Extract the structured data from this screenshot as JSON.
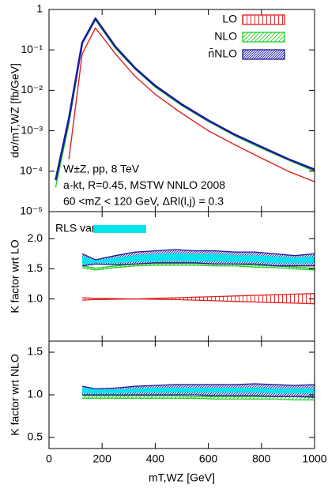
{
  "chart_data": [
    {
      "type": "line",
      "ylabel": "dσ/mT,WZ [fb/GeV]",
      "log": true,
      "xlim": [
        0,
        1000
      ],
      "ylim": [
        1e-05,
        1
      ],
      "yticks": [
        {
          "value": 1,
          "label": "1"
        },
        {
          "value": 0.1,
          "label": "10⁻¹"
        },
        {
          "value": 0.01,
          "label": "10⁻²"
        },
        {
          "value": 0.001,
          "label": "10⁻³"
        },
        {
          "value": 0.0001,
          "label": "10⁻⁴"
        },
        {
          "value": 1e-05,
          "label": "10⁻⁵"
        }
      ],
      "legend": "top-right",
      "annotations": [
        "W±Z, pp, 8 TeV",
        "a-kt, R=0.45, MSTW NNLO 2008",
        "60 <mZ < 120 GeV, ΔRl(l,j) = 0.3"
      ],
      "series": [
        {
          "name": "LO",
          "color": "#e02020",
          "hatch": "vertical",
          "x": [
            25,
            75,
            125,
            175,
            250,
            325,
            400,
            500,
            600,
            700,
            800,
            900,
            1000
          ],
          "values": [
            null,
            0.0002,
            0.08,
            0.35,
            0.08,
            0.022,
            0.008,
            0.0027,
            0.001,
            0.00045,
            0.00021,
            0.0001,
            5.5e-05
          ]
        },
        {
          "name": "NLO",
          "color": "#22d022",
          "hatch": "diagonal",
          "x": [
            25,
            75,
            125,
            175,
            250,
            325,
            400,
            500,
            600,
            700,
            800,
            900,
            1000
          ],
          "values": [
            4e-05,
            0.0015,
            0.14,
            0.55,
            0.11,
            0.033,
            0.012,
            0.0042,
            0.0017,
            0.00075,
            0.00037,
            0.00019,
            0.0001
          ]
        },
        {
          "name": "n̄NLO",
          "color": "#1c1ca0",
          "hatch": "dense",
          "x": [
            25,
            75,
            125,
            175,
            250,
            325,
            400,
            500,
            600,
            700,
            800,
            900,
            1000
          ],
          "values": [
            6e-05,
            0.002,
            0.15,
            0.6,
            0.12,
            0.035,
            0.013,
            0.0045,
            0.0018,
            0.0008,
            0.0004,
            0.0002,
            0.00011
          ]
        }
      ]
    },
    {
      "type": "band",
      "ylabel": "K factor wrt LO",
      "xlim": [
        0,
        1000
      ],
      "ylim": [
        0.3,
        2.45
      ],
      "yticks": [
        {
          "value": 1,
          "label": "1.0"
        },
        1.5,
        {
          "value": 2,
          "label": "2.0"
        }
      ],
      "legend": "top-left",
      "series": [
        {
          "color": "#e02020",
          "hatch": "vertical",
          "x": [
            125,
            175,
            250,
            325,
            400,
            475,
            550,
            625,
            700,
            775,
            850,
            925,
            1000
          ],
          "low": [
            0.98,
            0.99,
            0.995,
            1.0,
            0.995,
            0.99,
            0.98,
            0.97,
            0.96,
            0.95,
            0.94,
            0.93,
            0.92
          ],
          "high": [
            1.02,
            1.01,
            1.005,
            1.0,
            1.01,
            1.02,
            1.03,
            1.04,
            1.05,
            1.06,
            1.07,
            1.08,
            1.09
          ]
        },
        {
          "color": "#22d022",
          "hatch": "diagonal",
          "x": [
            125,
            175,
            250,
            325,
            400,
            475,
            550,
            625,
            700,
            775,
            850,
            925,
            1000
          ],
          "low": [
            1.52,
            1.48,
            1.52,
            1.55,
            1.56,
            1.56,
            1.56,
            1.55,
            1.55,
            1.53,
            1.52,
            1.5,
            1.48
          ],
          "high": [
            1.55,
            1.51,
            1.55,
            1.58,
            1.59,
            1.59,
            1.59,
            1.58,
            1.58,
            1.56,
            1.55,
            1.53,
            1.51
          ]
        },
        {
          "color": "#1c1ca0",
          "hatch": "dense",
          "x": [
            125,
            175,
            250,
            325,
            400,
            475,
            550,
            625,
            700,
            775,
            850,
            925,
            1000
          ],
          "low": [
            1.55,
            1.58,
            1.57,
            1.58,
            1.6,
            1.6,
            1.6,
            1.58,
            1.58,
            1.58,
            1.55,
            1.55,
            1.55
          ],
          "high": [
            1.75,
            1.65,
            1.72,
            1.78,
            1.8,
            1.82,
            1.8,
            1.8,
            1.78,
            1.78,
            1.75,
            1.72,
            1.75
          ]
        },
        {
          "name": "RLS var",
          "color": "#00e5ee",
          "hatch": "solid",
          "x": [
            125,
            175,
            250,
            325,
            400,
            475,
            550,
            625,
            700,
            775,
            850,
            925,
            1000
          ],
          "low": [
            1.58,
            1.6,
            1.6,
            1.62,
            1.63,
            1.64,
            1.63,
            1.63,
            1.62,
            1.62,
            1.6,
            1.6,
            1.6
          ],
          "high": [
            1.7,
            1.64,
            1.68,
            1.72,
            1.74,
            1.75,
            1.74,
            1.74,
            1.72,
            1.72,
            1.7,
            1.68,
            1.7
          ]
        }
      ]
    },
    {
      "type": "band",
      "ylabel": "K factor wrt NLO",
      "xlabel": "mT,WZ [GeV]",
      "xlim": [
        0,
        1000
      ],
      "ylim": [
        0.37,
        1.63
      ],
      "xticks": [
        0,
        200,
        400,
        600,
        800,
        1000
      ],
      "yticks": [
        0.5,
        {
          "value": 1,
          "label": "1.0"
        },
        1.5
      ],
      "series": [
        {
          "color": "#22d022",
          "hatch": "diagonal",
          "x": [
            125,
            175,
            250,
            325,
            400,
            475,
            550,
            625,
            700,
            775,
            850,
            925,
            1000
          ],
          "low": [
            0.96,
            0.96,
            0.96,
            0.96,
            0.96,
            0.96,
            0.96,
            0.95,
            0.95,
            0.95,
            0.95,
            0.94,
            0.94
          ],
          "high": [
            0.99,
            0.99,
            0.99,
            0.99,
            0.99,
            0.99,
            0.98,
            0.98,
            0.98,
            0.98,
            0.98,
            0.98,
            0.98
          ]
        },
        {
          "color": "#1c1ca0",
          "hatch": "dense",
          "x": [
            125,
            175,
            250,
            325,
            400,
            475,
            550,
            625,
            700,
            775,
            850,
            925,
            1000
          ],
          "low": [
            1.0,
            1.0,
            1.0,
            1.0,
            1.0,
            1.0,
            1.0,
            0.99,
            0.99,
            0.99,
            0.98,
            0.98,
            0.97
          ],
          "high": [
            1.1,
            1.07,
            1.08,
            1.1,
            1.11,
            1.12,
            1.12,
            1.12,
            1.12,
            1.13,
            1.12,
            1.11,
            1.12
          ]
        },
        {
          "color": "#00e5ee",
          "hatch": "solid",
          "x": [
            125,
            175,
            250,
            325,
            400,
            475,
            550,
            625,
            700,
            775,
            850,
            925,
            1000
          ],
          "low": [
            1.02,
            1.02,
            1.02,
            1.03,
            1.03,
            1.03,
            1.03,
            1.03,
            1.03,
            1.03,
            1.02,
            1.02,
            1.02
          ],
          "high": [
            1.08,
            1.06,
            1.06,
            1.07,
            1.08,
            1.08,
            1.08,
            1.08,
            1.08,
            1.08,
            1.07,
            1.07,
            1.07
          ]
        }
      ]
    }
  ]
}
